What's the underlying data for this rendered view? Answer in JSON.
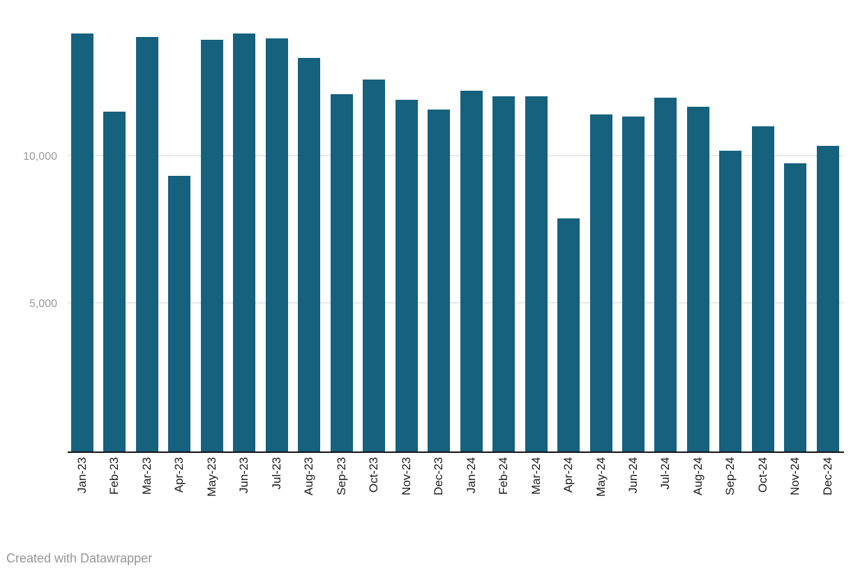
{
  "chart_data": {
    "type": "bar",
    "title": "",
    "xlabel": "",
    "ylabel": "",
    "categories": [
      "Jan-23",
      "Feb-23",
      "Mar-23",
      "Apr-23",
      "May-23",
      "Jun-23",
      "Jul-23",
      "Aug-23",
      "Sep-23",
      "Oct-23",
      "Nov-23",
      "Dec-23",
      "Jan-24",
      "Feb-24",
      "Mar-24",
      "Apr-24",
      "May-24",
      "Jun-24",
      "Jul-24",
      "Aug-24",
      "Sep-24",
      "Oct-24",
      "Nov-24",
      "Dec-24"
    ],
    "values": [
      14200,
      11550,
      14100,
      9370,
      14000,
      14200,
      14050,
      13390,
      12150,
      12640,
      11960,
      11630,
      12260,
      12080,
      12080,
      7930,
      11470,
      11380,
      12030,
      11710,
      10220,
      11050,
      9790,
      10390
    ],
    "ylim": [
      0,
      15000
    ],
    "yticks": [
      {
        "value": 5000,
        "label": "5,000"
      },
      {
        "value": 10000,
        "label": "10,000"
      }
    ],
    "grid": "horizontal-only",
    "legend": "none",
    "x_tick_rotation_deg": -90
  },
  "colors": {
    "bar": "#15617e",
    "gridline": "#e8e8e8",
    "baseline": "#141414",
    "x_tick_label": "#1a1a1a",
    "y_tick_label": "#9a9a9a",
    "attribution_text": "#969696",
    "background": "#ffffff"
  },
  "footer": {
    "attribution": "Created with Datawrapper"
  }
}
